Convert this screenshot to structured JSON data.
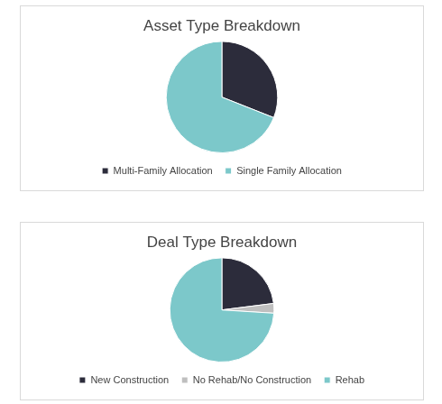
{
  "chart_data": [
    {
      "type": "pie",
      "title": "Asset Type Breakdown",
      "categories": [
        "Multi-Family Allocation",
        "Single Family Allocation"
      ],
      "values": [
        31,
        69
      ],
      "colors": [
        "#2c2c3b",
        "#7cc8ca"
      ],
      "legend": "bottom"
    },
    {
      "type": "pie",
      "title": "Deal Type Breakdown",
      "categories": [
        "New Construction",
        "No Rehab/No Construction",
        "Rehab"
      ],
      "values": [
        23,
        3,
        74
      ],
      "colors": [
        "#2c2c3b",
        "#bfbfbf",
        "#7cc8ca"
      ],
      "legend": "bottom"
    }
  ]
}
